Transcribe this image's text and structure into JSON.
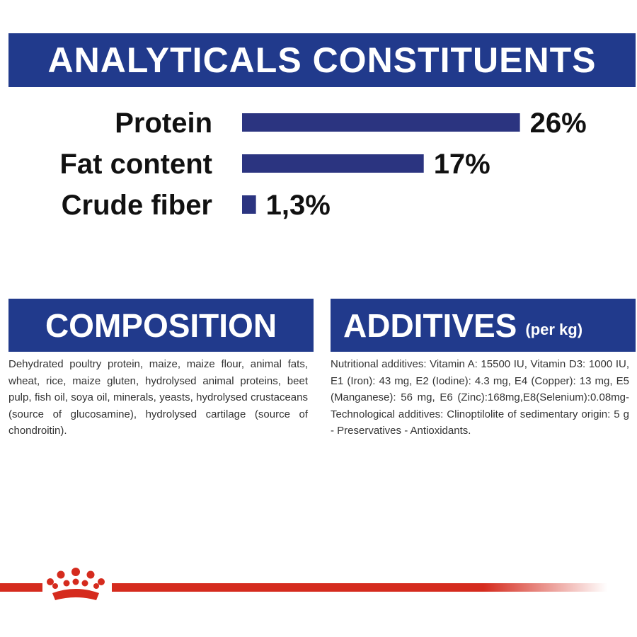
{
  "header": {
    "title": "ANALYTICALS CONSTITUENTS"
  },
  "constituents": [
    {
      "label": "Protein",
      "value": 26,
      "value_label": "26%"
    },
    {
      "label": "Fat content",
      "value": 17,
      "value_label": "17%"
    },
    {
      "label": "Crude fiber",
      "value": 1.3,
      "value_label": "1,3%"
    }
  ],
  "composition": {
    "title": "COMPOSITION",
    "text": "Dehydrated poultry protein, maize, maize flour, animal fats, wheat, rice, maize gluten, hydrolysed animal proteins, beet pulp, fish oil, soya oil, minerals, yeasts, hydrolysed crustaceans (source of glucosamine), hydrolysed cartilage (source of chondroitin)."
  },
  "additives": {
    "title": "ADDITIVES",
    "unit": "(per kg)",
    "text": "Nutritional additives: Vitamin A: 15500 IU, Vitamin D3: 1000 IU, E1 (Iron): 43 mg, E2 (Iodine): 4.3 mg, E4 (Copper): 13 mg, E5 (Manganese): 56 mg, E6 (Zinc):168mg,E8(Selenium):0.08mg-Technological additives: Clinoptilolite of sedimentary origin: 5 g - Preservatives - Antioxidants."
  }
}
